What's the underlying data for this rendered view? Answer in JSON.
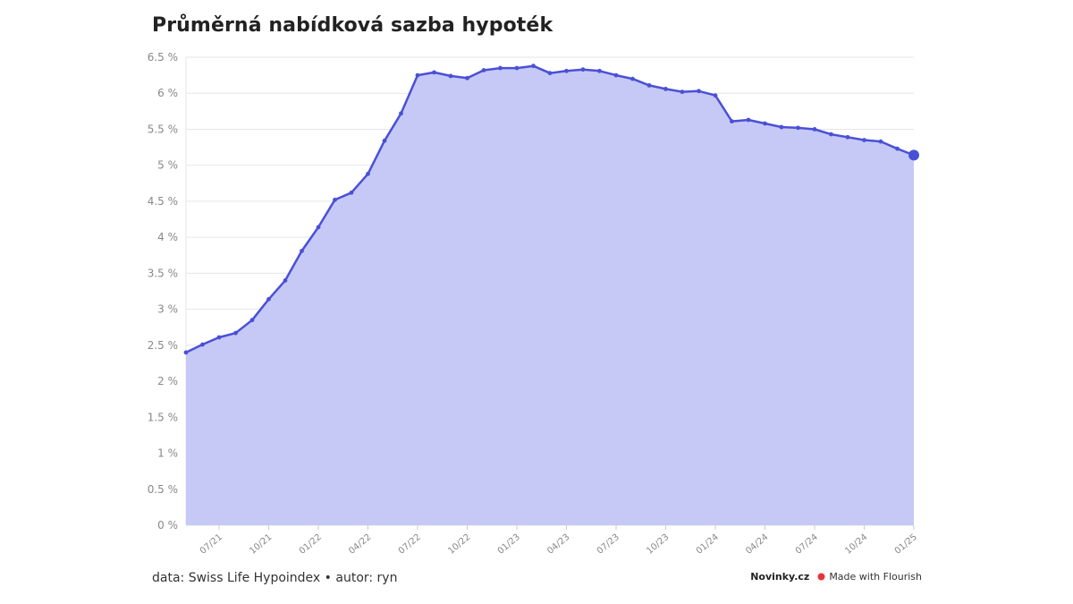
{
  "title": "Průměrná nabídková sazba hypoték",
  "source": "data: Swiss Life Hypoindex • autor: ryn",
  "brand": {
    "publisher": "Novinky.cz",
    "flourish": "Made with Flourish"
  },
  "colors": {
    "line": "#4a50d6",
    "area": "#c6c9f6",
    "grid": "#e6e6e6",
    "tick": "#888888"
  },
  "chart_data": {
    "type": "area",
    "title": "Průměrná nabídková sazba hypoték",
    "xlabel": "",
    "ylabel": "",
    "ylim": [
      0,
      6.5
    ],
    "y_ticks": [
      {
        "value": 0,
        "label": "0 %"
      },
      {
        "value": 0.5,
        "label": "0.5 %"
      },
      {
        "value": 1,
        "label": "1 %"
      },
      {
        "value": 1.5,
        "label": "1.5 %"
      },
      {
        "value": 2,
        "label": "2 %"
      },
      {
        "value": 2.5,
        "label": "2.5 %"
      },
      {
        "value": 3,
        "label": "3 %"
      },
      {
        "value": 3.5,
        "label": "3.5 %"
      },
      {
        "value": 4,
        "label": "4 %"
      },
      {
        "value": 4.5,
        "label": "4.5 %"
      },
      {
        "value": 5,
        "label": "5 %"
      },
      {
        "value": 5.5,
        "label": "5.5 %"
      },
      {
        "value": 6,
        "label": "6 %"
      },
      {
        "value": 6.5,
        "label": "6.5 %"
      }
    ],
    "x_ticks": [
      "07/21",
      "10/21",
      "01/22",
      "04/22",
      "07/22",
      "10/22",
      "01/23",
      "04/23",
      "07/23",
      "10/23",
      "01/24",
      "04/24",
      "07/24",
      "10/24",
      "01/25"
    ],
    "grid": true,
    "series": [
      {
        "x": [
          "05/21",
          "06/21",
          "07/21",
          "08/21",
          "09/21",
          "10/21",
          "11/21",
          "12/21",
          "01/22",
          "02/22",
          "03/22",
          "04/22",
          "05/22",
          "06/22",
          "07/22",
          "08/22",
          "09/22",
          "10/22",
          "11/22",
          "12/22",
          "01/23",
          "02/23",
          "03/23",
          "04/23",
          "05/23",
          "06/23",
          "07/23",
          "08/23",
          "09/23",
          "10/23",
          "11/23",
          "12/23",
          "01/24",
          "02/24",
          "03/24",
          "04/24",
          "05/24",
          "06/24",
          "07/24",
          "08/24",
          "09/24",
          "10/24",
          "11/24",
          "12/24",
          "01/25"
        ],
        "values": [
          2.4,
          2.51,
          2.61,
          2.67,
          2.85,
          3.14,
          3.4,
          3.81,
          4.14,
          4.52,
          4.62,
          4.88,
          5.34,
          5.72,
          6.25,
          6.29,
          6.24,
          6.21,
          6.32,
          6.35,
          6.35,
          6.38,
          6.28,
          6.31,
          6.33,
          6.31,
          6.25,
          6.2,
          6.11,
          6.06,
          6.02,
          6.03,
          5.97,
          5.61,
          5.63,
          5.58,
          5.53,
          5.52,
          5.5,
          5.43,
          5.39,
          5.35,
          5.33,
          5.23,
          5.14
        ]
      }
    ]
  }
}
